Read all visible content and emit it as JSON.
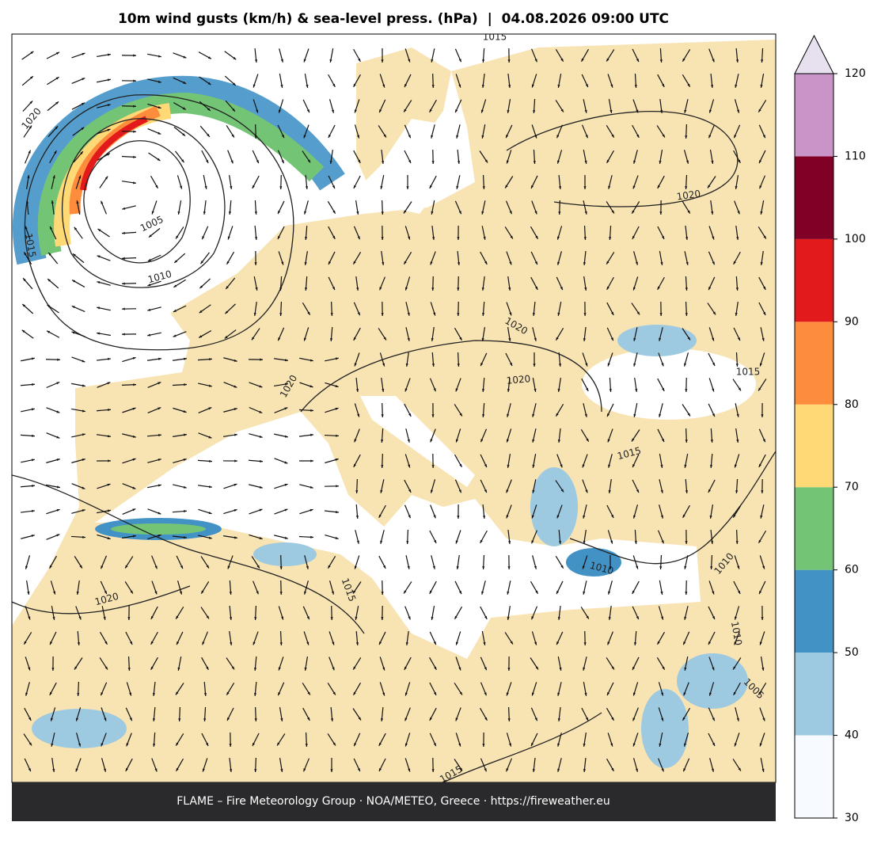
{
  "header": {
    "title": "10m wind gusts (km/h) & sea-level press. (hPa)  |  04.08.2026 09:00 UTC"
  },
  "footer": {
    "text": "FLAME – Fire Meteorology Group · NOA/METEO, Greece · https://fireweather.eu"
  },
  "colorbar": {
    "ticks": [
      30,
      40,
      50,
      60,
      70,
      80,
      90,
      100,
      110,
      120
    ],
    "colors": [
      "#f7fbff",
      "#9ecae1",
      "#4292c6",
      "#74c476",
      "#fed976",
      "#fd8d3c",
      "#e31a1c",
      "#800026",
      "#c994c7"
    ],
    "extend_color": "#e7e1ef"
  },
  "map": {
    "isobar_labels": [
      "1015",
      "1020",
      "1005",
      "1010",
      "1015",
      "1020",
      "1020",
      "1020",
      "1020",
      "1015",
      "1015",
      "1010",
      "1010",
      "1015",
      "1020",
      "1015",
      "1010",
      "1005"
    ]
  }
}
